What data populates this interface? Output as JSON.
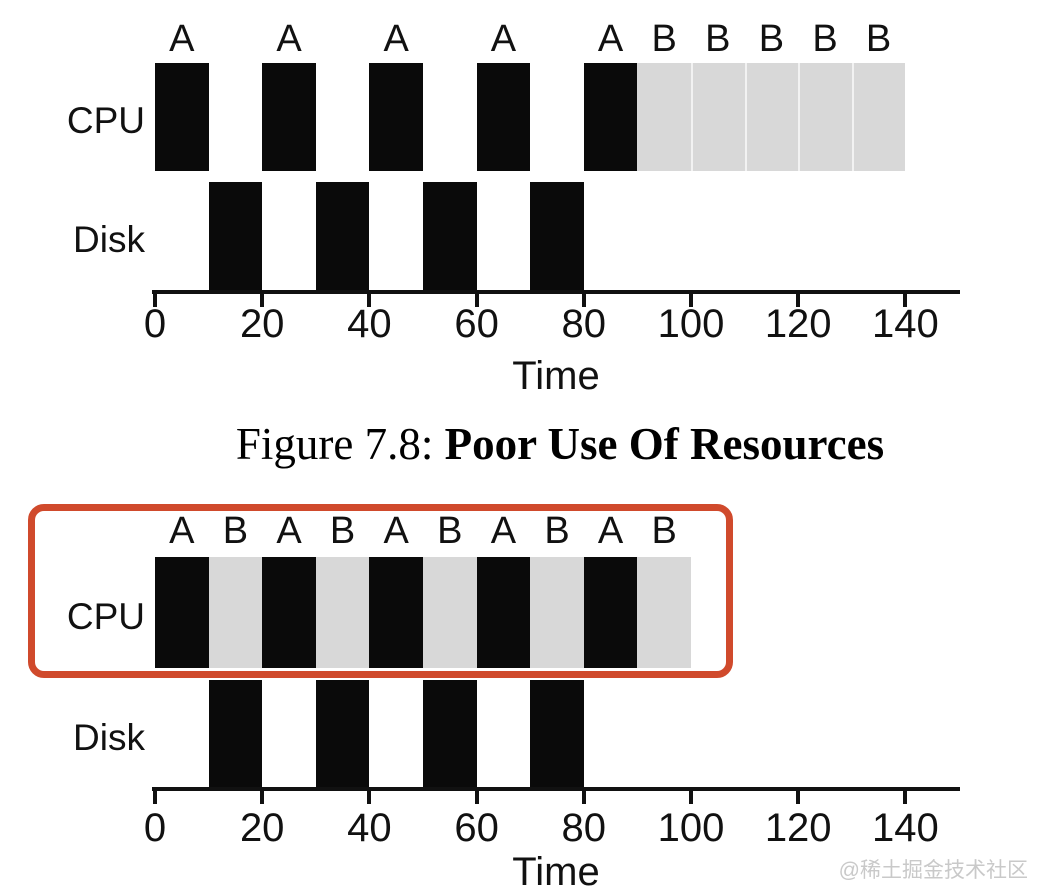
{
  "caption": {
    "prefix": "Figure 7.8: ",
    "title": "Poor Use Of Resources"
  },
  "watermark": {
    "text": "@稀土掘金技术社区"
  },
  "colors": {
    "process_a_block": "#0a0a0a",
    "process_b_block": "#d8d8d8",
    "block_separator": "#f2f2f2",
    "highlight_border": "#d04a2c",
    "axis": "#111111",
    "text": "#111111",
    "watermark": "#c9c9c9",
    "background": "#ffffff"
  },
  "chart_data": [
    {
      "id": "top",
      "type": "gantt-timeline",
      "xlabel": "Time",
      "ticks": [
        0,
        20,
        40,
        60,
        80,
        100,
        120,
        140
      ],
      "xlim": [
        0,
        150
      ],
      "cpu_row_highlighted": false,
      "rows": [
        {
          "label": "CPU",
          "blocks": [
            {
              "process": "A",
              "start": 0,
              "end": 10
            },
            {
              "process": "A",
              "start": 20,
              "end": 30
            },
            {
              "process": "A",
              "start": 40,
              "end": 50
            },
            {
              "process": "A",
              "start": 60,
              "end": 70
            },
            {
              "process": "A",
              "start": 80,
              "end": 90
            },
            {
              "process": "B",
              "start": 90,
              "end": 100
            },
            {
              "process": "B",
              "start": 100,
              "end": 110
            },
            {
              "process": "B",
              "start": 110,
              "end": 120
            },
            {
              "process": "B",
              "start": 120,
              "end": 130
            },
            {
              "process": "B",
              "start": 130,
              "end": 140
            }
          ]
        },
        {
          "label": "Disk",
          "blocks": [
            {
              "process": "A",
              "start": 10,
              "end": 20
            },
            {
              "process": "A",
              "start": 30,
              "end": 40
            },
            {
              "process": "A",
              "start": 50,
              "end": 60
            },
            {
              "process": "A",
              "start": 70,
              "end": 80
            }
          ]
        }
      ]
    },
    {
      "id": "bottom",
      "type": "gantt-timeline",
      "xlabel": "Time",
      "ticks": [
        0,
        20,
        40,
        60,
        80,
        100,
        120,
        140
      ],
      "xlim": [
        0,
        150
      ],
      "cpu_row_highlighted": true,
      "rows": [
        {
          "label": "CPU",
          "blocks": [
            {
              "process": "A",
              "start": 0,
              "end": 10
            },
            {
              "process": "B",
              "start": 10,
              "end": 20
            },
            {
              "process": "A",
              "start": 20,
              "end": 30
            },
            {
              "process": "B",
              "start": 30,
              "end": 40
            },
            {
              "process": "A",
              "start": 40,
              "end": 50
            },
            {
              "process": "B",
              "start": 50,
              "end": 60
            },
            {
              "process": "A",
              "start": 60,
              "end": 70
            },
            {
              "process": "B",
              "start": 70,
              "end": 80
            },
            {
              "process": "A",
              "start": 80,
              "end": 90
            },
            {
              "process": "B",
              "start": 90,
              "end": 100
            }
          ]
        },
        {
          "label": "Disk",
          "blocks": [
            {
              "process": "A",
              "start": 10,
              "end": 20
            },
            {
              "process": "A",
              "start": 30,
              "end": 40
            },
            {
              "process": "A",
              "start": 50,
              "end": 60
            },
            {
              "process": "A",
              "start": 70,
              "end": 80
            }
          ]
        }
      ]
    }
  ]
}
